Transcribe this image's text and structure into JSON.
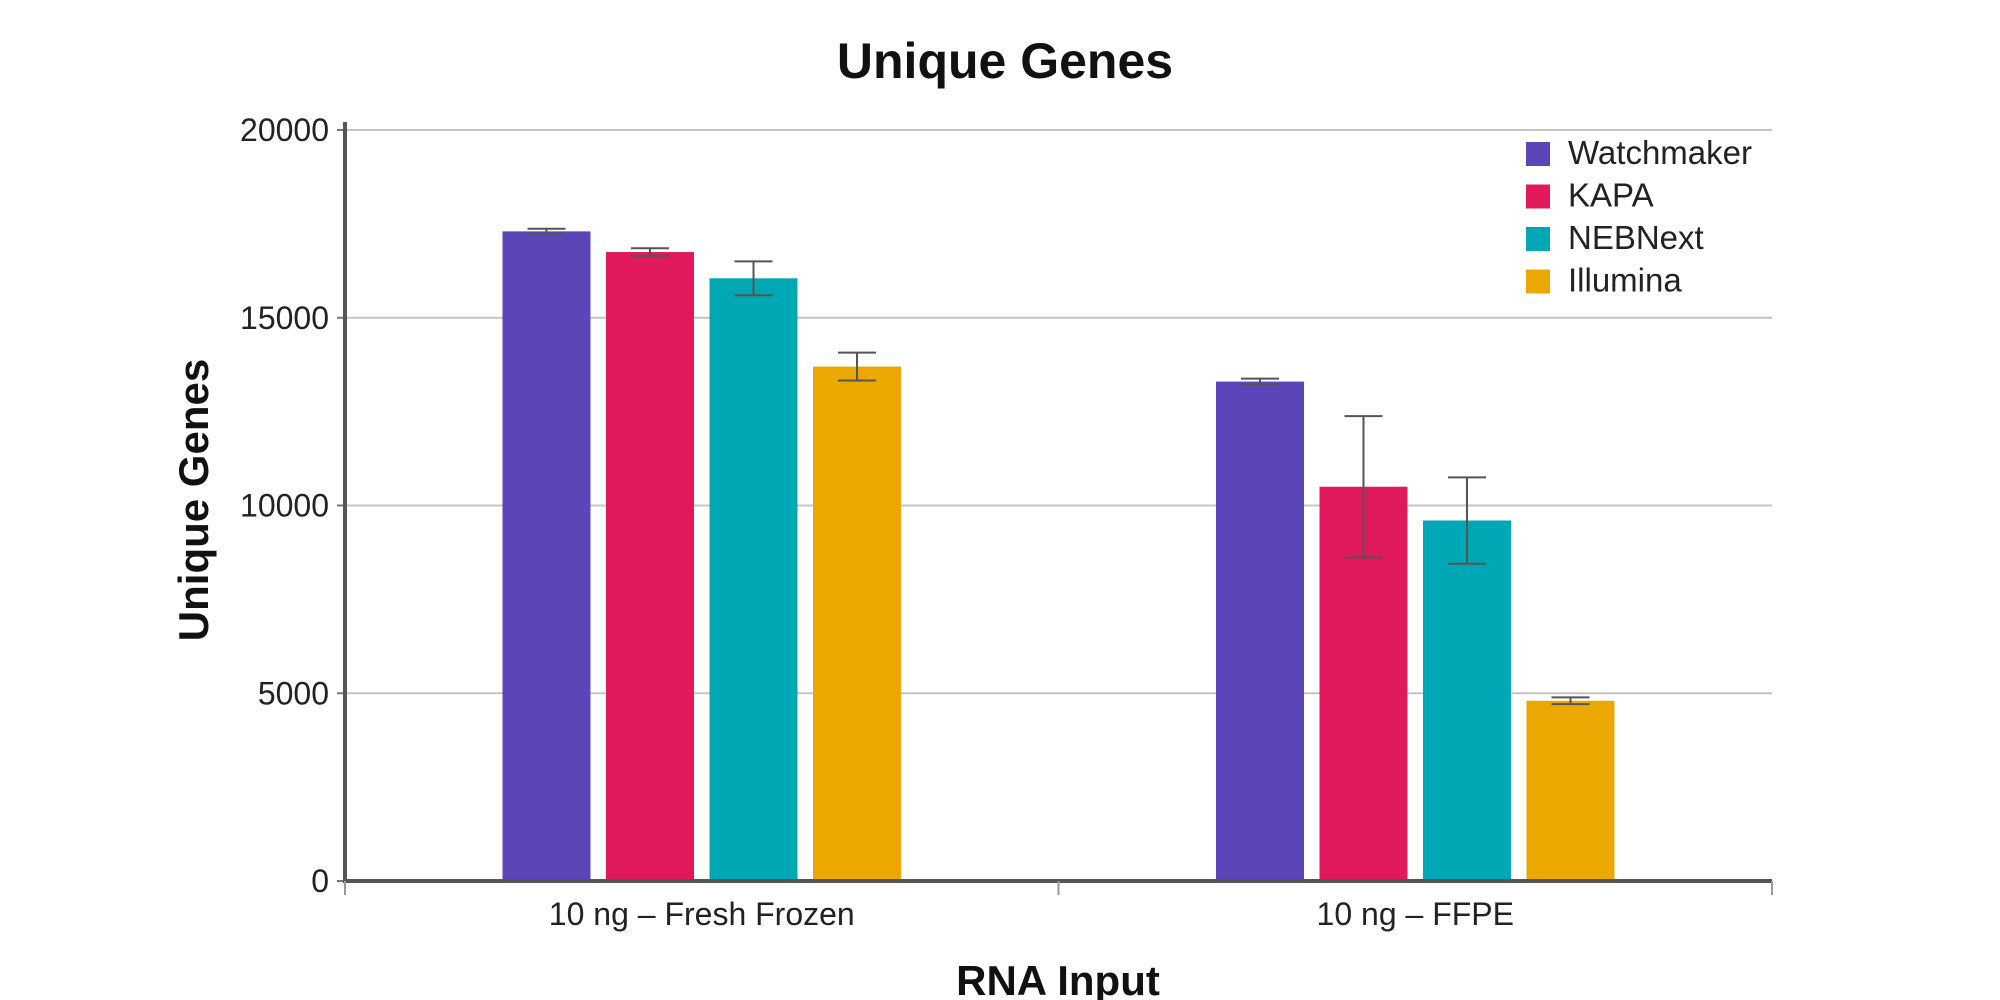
{
  "chart_data": {
    "type": "bar",
    "title": "Unique Genes",
    "xlabel": "RNA Input",
    "ylabel": "Unique Genes",
    "categories": [
      "10 ng – Fresh Frozen",
      "10 ng – FFPE"
    ],
    "ylim": [
      0,
      20000
    ],
    "yticks": [
      0,
      5000,
      10000,
      15000,
      20000
    ],
    "grid": true,
    "legend_position": "top-right",
    "series": [
      {
        "name": "Watchmaker",
        "color": "#5c45b8",
        "values": [
          17300,
          13300
        ],
        "errors": [
          70,
          80
        ]
      },
      {
        "name": "KAPA",
        "color": "#e0185c",
        "values": [
          16750,
          10500
        ],
        "errors": [
          100,
          1880
        ]
      },
      {
        "name": "NEBNext",
        "color": "#00a8b5",
        "values": [
          16050,
          9600
        ],
        "errors": [
          450,
          1150
        ]
      },
      {
        "name": "Illumina",
        "color": "#eaa800",
        "values": [
          13700,
          4800
        ],
        "errors": [
          370,
          90
        ]
      }
    ]
  }
}
